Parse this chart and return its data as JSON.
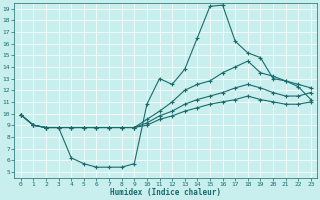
{
  "xlabel": "Humidex (Indice chaleur)",
  "ylabel": "",
  "bg_color": "#c8eeee",
  "line_color": "#1a6b6b",
  "xlim": [
    -0.5,
    23.5
  ],
  "ylim": [
    4.5,
    19.5
  ],
  "xticks": [
    0,
    1,
    2,
    3,
    4,
    5,
    6,
    7,
    8,
    9,
    10,
    11,
    12,
    13,
    14,
    15,
    16,
    17,
    18,
    19,
    20,
    21,
    22,
    23
  ],
  "yticks": [
    5,
    6,
    7,
    8,
    9,
    10,
    11,
    12,
    13,
    14,
    15,
    16,
    17,
    18,
    19
  ],
  "lines": [
    {
      "x": [
        0,
        1,
        2,
        3,
        4,
        5,
        6,
        7,
        8,
        9,
        10,
        11,
        12,
        13,
        14,
        15,
        16,
        17,
        18,
        19,
        20,
        21,
        22,
        23
      ],
      "y": [
        9.9,
        9.0,
        8.8,
        8.8,
        6.2,
        5.7,
        5.4,
        5.4,
        5.4,
        5.7,
        10.8,
        13.0,
        12.5,
        13.8,
        16.5,
        19.2,
        19.3,
        16.2,
        15.2,
        14.8,
        13.0,
        12.8,
        12.3,
        11.2
      ]
    },
    {
      "x": [
        0,
        1,
        2,
        3,
        4,
        5,
        6,
        7,
        8,
        9,
        10,
        11,
        12,
        13,
        14,
        15,
        16,
        17,
        18,
        19,
        20,
        21,
        22,
        23
      ],
      "y": [
        9.9,
        9.0,
        8.8,
        8.8,
        8.8,
        8.8,
        8.8,
        8.8,
        8.8,
        8.8,
        9.5,
        10.2,
        11.0,
        12.0,
        12.5,
        12.8,
        13.5,
        14.0,
        14.5,
        13.5,
        13.2,
        12.8,
        12.5,
        12.2
      ]
    },
    {
      "x": [
        0,
        1,
        2,
        3,
        4,
        5,
        6,
        7,
        8,
        9,
        10,
        11,
        12,
        13,
        14,
        15,
        16,
        17,
        18,
        19,
        20,
        21,
        22,
        23
      ],
      "y": [
        9.9,
        9.0,
        8.8,
        8.8,
        8.8,
        8.8,
        8.8,
        8.8,
        8.8,
        8.8,
        9.2,
        9.8,
        10.2,
        10.8,
        11.2,
        11.5,
        11.8,
        12.2,
        12.5,
        12.2,
        11.8,
        11.5,
        11.5,
        11.8
      ]
    },
    {
      "x": [
        0,
        1,
        2,
        3,
        4,
        5,
        6,
        7,
        8,
        9,
        10,
        11,
        12,
        13,
        14,
        15,
        16,
        17,
        18,
        19,
        20,
        21,
        22,
        23
      ],
      "y": [
        9.9,
        9.0,
        8.8,
        8.8,
        8.8,
        8.8,
        8.8,
        8.8,
        8.8,
        8.8,
        9.0,
        9.5,
        9.8,
        10.2,
        10.5,
        10.8,
        11.0,
        11.2,
        11.5,
        11.2,
        11.0,
        10.8,
        10.8,
        11.0
      ]
    }
  ]
}
